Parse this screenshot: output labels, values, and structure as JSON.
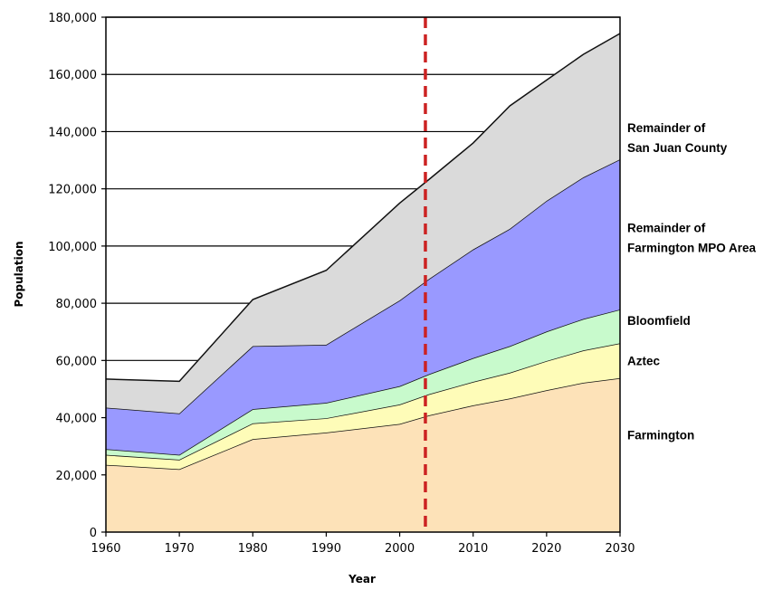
{
  "chart_data": {
    "type": "area",
    "stacked": true,
    "x": [
      1960,
      1970,
      1980,
      1990,
      2000,
      2004,
      2010,
      2015,
      2020,
      2025,
      2030
    ],
    "xticks": [
      "1960",
      "1970",
      "1980",
      "1990",
      "2000",
      "2010",
      "2020",
      "2030"
    ],
    "yticks": [
      "0",
      "20,000",
      "40,000",
      "60,000",
      "80,000",
      "100,000",
      "120,000",
      "140,000",
      "160,000",
      "180,000"
    ],
    "ylim": [
      0,
      180000
    ],
    "xlim": [
      1960,
      2030
    ],
    "xlabel": "Year",
    "ylabel": "Population",
    "grid": "horizontal",
    "reference_line": {
      "x": 2003.5,
      "color": "#cc2222",
      "style": "dashed"
    },
    "series": [
      {
        "name": "Farmington",
        "color": "#fde2b8",
        "values": [
          23500,
          22000,
          32500,
          34800,
          37800,
          40800,
          44300,
          46700,
          49600,
          52200,
          53800
        ]
      },
      {
        "name": "Aztec",
        "color": "#fefcb8",
        "values": [
          3500,
          3300,
          5500,
          5000,
          6800,
          7400,
          8200,
          9000,
          10200,
          11300,
          12200
        ]
      },
      {
        "name": "Bloomfield",
        "color": "#c8facc",
        "values": [
          2000,
          1700,
          5000,
          5400,
          6400,
          7000,
          8300,
          9300,
          10300,
          11000,
          11800
        ]
      },
      {
        "name": "Remainder of Farmington MPO Area",
        "color": "#9999ff",
        "values": [
          14500,
          14500,
          22000,
          20300,
          30000,
          33300,
          38000,
          41000,
          45700,
          49500,
          52500
        ]
      },
      {
        "name": "Remainder of San Juan County",
        "color": "#dadada",
        "values": [
          10000,
          11200,
          16300,
          26000,
          34000,
          34800,
          37200,
          43000,
          42200,
          43000,
          44000
        ]
      }
    ],
    "legend_labels": [
      {
        "series": "Remainder of San Juan County",
        "lines": [
          "Remainder of",
          "San Juan County"
        ]
      },
      {
        "series": "Remainder of Farmington MPO Area",
        "lines": [
          "Remainder of",
          "Farmington MPO Area"
        ]
      },
      {
        "series": "Bloomfield",
        "lines": [
          "Bloomfield"
        ]
      },
      {
        "series": "Aztec",
        "lines": [
          "Aztec"
        ]
      },
      {
        "series": "Farmington",
        "lines": [
          "Farmington"
        ]
      }
    ]
  }
}
